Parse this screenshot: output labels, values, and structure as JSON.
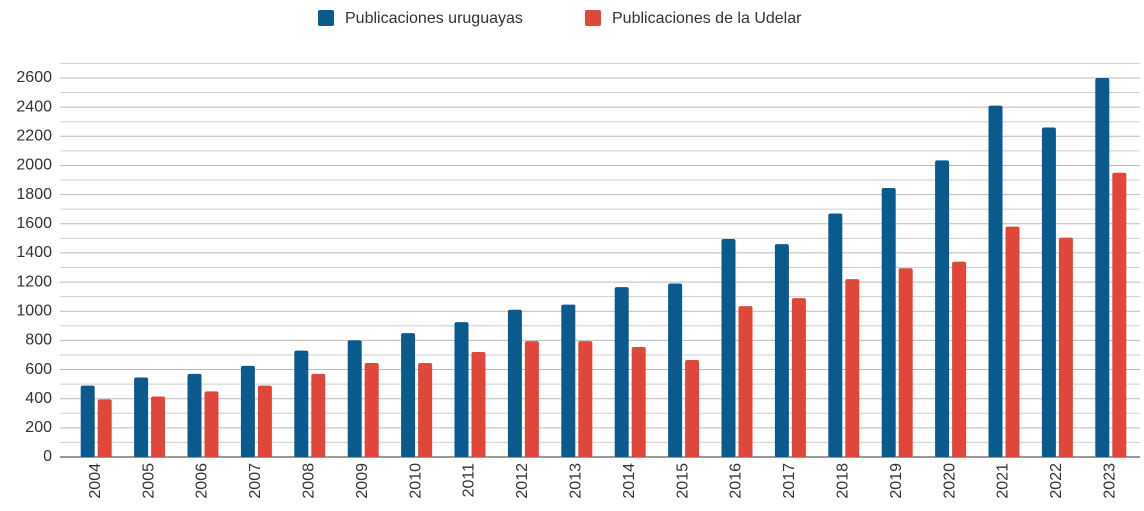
{
  "chart_data": {
    "type": "bar",
    "categories": [
      "2004",
      "2005",
      "2006",
      "2007",
      "2008",
      "2009",
      "2010",
      "2011",
      "2012",
      "2013",
      "2014",
      "2015",
      "2016",
      "2017",
      "2018",
      "2019",
      "2020",
      "2021",
      "2022",
      "2023"
    ],
    "series": [
      {
        "name": "Publicaciones uruguayas",
        "color": "#0b5a8e",
        "values": [
          490,
          545,
          570,
          625,
          730,
          800,
          850,
          925,
          1010,
          1045,
          1165,
          1190,
          1495,
          1460,
          1670,
          1845,
          2035,
          2410,
          2260,
          2600
        ]
      },
      {
        "name": "Publicaciones de la Udelar",
        "color": "#e0473a",
        "values": [
          395,
          415,
          450,
          490,
          570,
          645,
          645,
          720,
          795,
          795,
          755,
          665,
          1035,
          1090,
          1220,
          1295,
          1340,
          1580,
          1505,
          1950
        ]
      }
    ],
    "ylim": [
      0,
      2700
    ],
    "yticks": [
      0,
      200,
      400,
      600,
      800,
      1000,
      1200,
      1400,
      1600,
      1800,
      2000,
      2200,
      2400,
      2600
    ],
    "minor_yticks": [
      100,
      300,
      500,
      700,
      900,
      1100,
      1300,
      1500,
      1700,
      1900,
      2100,
      2300,
      2500,
      2700
    ],
    "grid": true,
    "legend": "top"
  }
}
